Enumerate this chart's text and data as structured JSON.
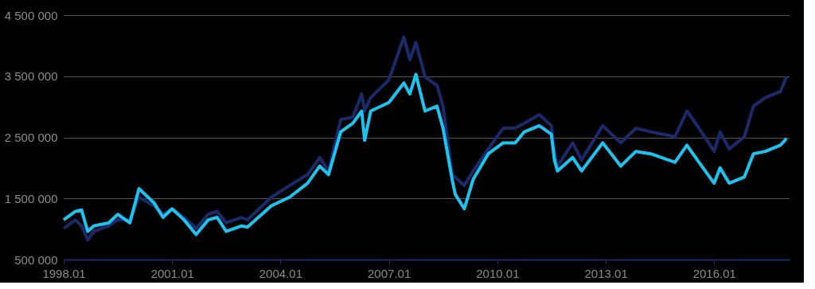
{
  "chart_data": {
    "type": "line",
    "x": [
      "1998-01",
      "1998-05",
      "1998-07",
      "1998-09",
      "1998-11",
      "1999-04",
      "1999-07",
      "1999-11",
      "2000-02",
      "2000-07",
      "2000-10",
      "2001-01",
      "2001-05",
      "2001-09",
      "2002-01",
      "2002-04",
      "2002-07",
      "2002-12",
      "2003-02",
      "2003-10",
      "2004-04",
      "2004-10",
      "2005-02",
      "2005-05",
      "2005-09",
      "2006-01",
      "2006-04",
      "2006-05",
      "2006-07",
      "2007-01",
      "2007-06",
      "2007-08",
      "2007-10",
      "2008-01",
      "2008-05",
      "2008-07",
      "2008-10",
      "2008-11",
      "2009-02",
      "2009-05",
      "2009-10",
      "2010-03",
      "2010-07",
      "2010-10",
      "2011-03",
      "2011-07",
      "2011-08",
      "2011-09",
      "2012-02",
      "2012-05",
      "2012-12",
      "2013-06",
      "2013-11",
      "2014-04",
      "2014-12",
      "2015-04",
      "2015-08",
      "2016-01",
      "2016-03",
      "2016-06",
      "2016-11",
      "2017-02",
      "2017-06",
      "2017-11",
      "2018-01"
    ],
    "series": [
      {
        "color": "#1b2a6b",
        "values": [
          1010000,
          1150000,
          1050000,
          820000,
          960000,
          1050000,
          1150000,
          1150000,
          1520000,
          1380000,
          1240000,
          1330000,
          1190000,
          1010000,
          1240000,
          1290000,
          1100000,
          1190000,
          1150000,
          1520000,
          1710000,
          1890000,
          2170000,
          1950000,
          2790000,
          2830000,
          3210000,
          2930000,
          3150000,
          3440000,
          4140000,
          3770000,
          4050000,
          3490000,
          3350000,
          3010000,
          1890000,
          1850000,
          1710000,
          1950000,
          2310000,
          2650000,
          2650000,
          2730000,
          2870000,
          2690000,
          2270000,
          2030000,
          2410000,
          2130000,
          2690000,
          2410000,
          2650000,
          2590000,
          2510000,
          2930000,
          2650000,
          2270000,
          2590000,
          2310000,
          2510000,
          3010000,
          3150000,
          3250000,
          3490000
        ]
      },
      {
        "color": "#1cc4f0",
        "values": [
          1150000,
          1290000,
          1310000,
          960000,
          1050000,
          1100000,
          1240000,
          1100000,
          1660000,
          1430000,
          1190000,
          1330000,
          1150000,
          910000,
          1150000,
          1190000,
          960000,
          1050000,
          1030000,
          1380000,
          1520000,
          1750000,
          2030000,
          1890000,
          2590000,
          2730000,
          2930000,
          2450000,
          2930000,
          3070000,
          3390000,
          3210000,
          3530000,
          2930000,
          3010000,
          2650000,
          1810000,
          1570000,
          1330000,
          1810000,
          2230000,
          2410000,
          2410000,
          2590000,
          2690000,
          2550000,
          2130000,
          1950000,
          2170000,
          1950000,
          2410000,
          2030000,
          2270000,
          2230000,
          2090000,
          2370000,
          2090000,
          1750000,
          2000000,
          1750000,
          1850000,
          2230000,
          2270000,
          2370000,
          2480000
        ]
      }
    ],
    "xlim": [
      "1998-01",
      "2018-02"
    ],
    "xticks": [
      {
        "value": "1998-01",
        "label": "1998.01"
      },
      {
        "value": "2001-01",
        "label": "2001.01"
      },
      {
        "value": "2004-01",
        "label": "2004.01"
      },
      {
        "value": "2007-01",
        "label": "2007.01"
      },
      {
        "value": "2010-01",
        "label": "2010.01"
      },
      {
        "value": "2013-01",
        "label": "2013.01"
      },
      {
        "value": "2016-01",
        "label": "2016.01"
      }
    ],
    "ylim": [
      500000,
      4500000
    ],
    "yticks": [
      {
        "value": 500000,
        "label": "500 000"
      },
      {
        "value": 1500000,
        "label": "1 500 000"
      },
      {
        "value": 2500000,
        "label": "2 500 000"
      },
      {
        "value": 3500000,
        "label": "3 500 000"
      },
      {
        "value": 4500000,
        "label": "4 500 000"
      }
    ],
    "grid": "y",
    "legend": false,
    "marker": "none",
    "line_style": "solid"
  }
}
